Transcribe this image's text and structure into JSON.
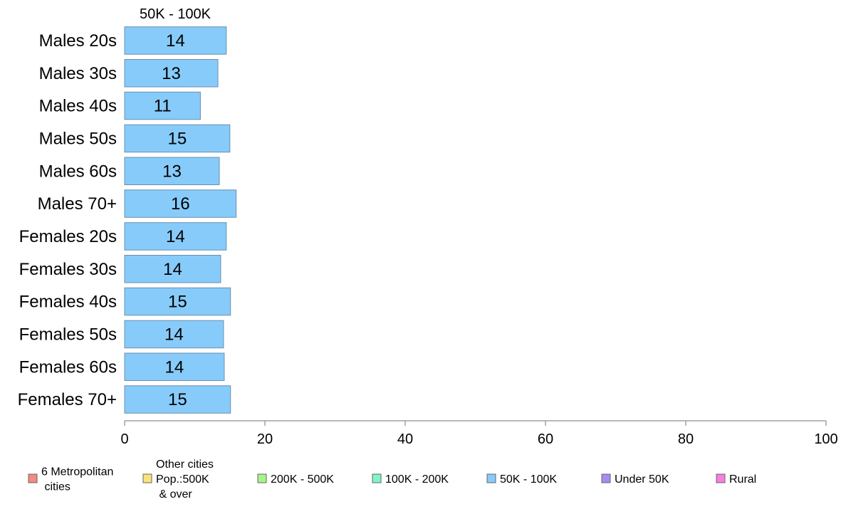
{
  "chart_data": {
    "type": "bar",
    "orientation": "horizontal",
    "series_label": "50K - 100K",
    "categories": [
      "Males 20s",
      "Males 30s",
      "Males 40s",
      "Males 50s",
      "Males 60s",
      "Males 70+",
      "Females 20s",
      "Females 30s",
      "Females 40s",
      "Females 50s",
      "Females 60s",
      "Females 70+"
    ],
    "series": [
      {
        "name": "50K - 100K",
        "values": [
          14.5,
          13.3,
          10.8,
          15.0,
          13.5,
          15.9,
          14.5,
          13.7,
          15.1,
          14.1,
          14.2,
          15.1
        ],
        "labels": [
          "14",
          "13",
          "11",
          "15",
          "13",
          "16",
          "14",
          "14",
          "15",
          "14",
          "14",
          "15"
        ]
      }
    ],
    "xlim": [
      0,
      100
    ],
    "xticks": [
      "0",
      "20",
      "40",
      "60",
      "80",
      "100"
    ],
    "bar_color": "#87cbfa",
    "bar_edge": "#6a8fb0",
    "axis_color": "#a0a0a0",
    "grid": false,
    "legend_position": "bottom",
    "legend": [
      {
        "label": [
          "6 Metropolitan",
          " cities"
        ],
        "color": "#f28b82"
      },
      {
        "label": [
          "Other cities",
          "Pop.:500K",
          " & over"
        ],
        "color": "#fbe37a"
      },
      {
        "label": [
          "200K - 500K"
        ],
        "color": "#a7f58a"
      },
      {
        "label": [
          "100K - 200K"
        ],
        "color": "#7ff5c8"
      },
      {
        "label": [
          "50K - 100K"
        ],
        "color": "#87cbfa"
      },
      {
        "label": [
          "Under 50K"
        ],
        "color": "#a98af2"
      },
      {
        "label": [
          "Rural"
        ],
        "color": "#f77fe0"
      }
    ]
  }
}
